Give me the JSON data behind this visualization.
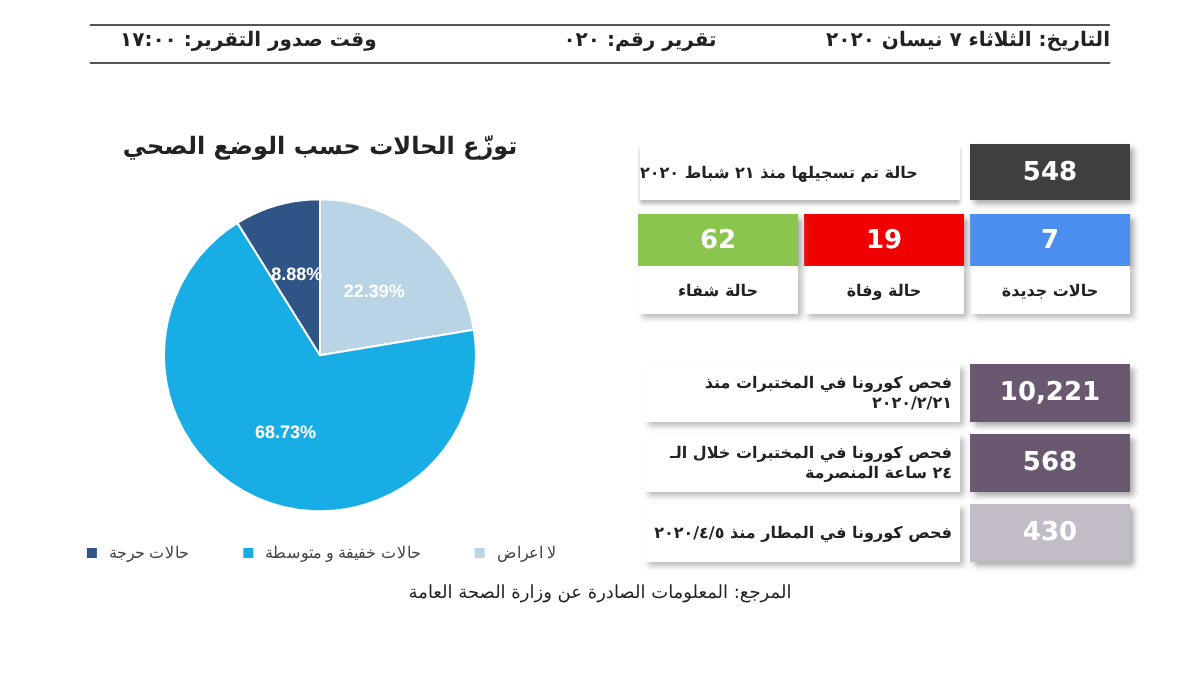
{
  "chart_data": [
    {
      "type": "pie",
      "title": "توزّع الحالات حسب الوضع الصحي",
      "categories": [
        "لا اعراض",
        "حالات خفيفة و متوسطة",
        "حالات حرجة"
      ],
      "values": [
        22.39,
        68.73,
        8.88
      ],
      "value_labels": [
        "22.39%",
        "68.73%",
        "8.88%"
      ],
      "colors": [
        "#b9d4e4",
        "#19ade5",
        "#2e5585"
      ],
      "legend": "bottom",
      "annotations": [
        "المرجع: المعلومات الصادرة عن وزارة الصحة العامة"
      ]
    },
    {
      "type": "other",
      "annotations": [
        "التاريخ: الثلاثاء ٧ نيسان ٢٠٢٠",
        "تقرير رقم: ٠٢٠",
        "وقت صدور التقرير: ١٧:٠٠",
        "548",
        "حالة تم تسجيلها منذ ٢١ شباط ٢٠٢٠",
        "7",
        "حالات جديدة",
        "19",
        "حالة وفاة",
        "62",
        "حالة شفاء",
        "10,221",
        "فحص كورونا في المختبرات منذ ٢٠٢٠/٢/٢١",
        "568",
        "فحص كورونا في المختبرات خلال الـ ٢٤ ساعة المنصرمة",
        "430",
        "فحص كورونا في المطار منذ ٢٠٢٠/٤/٥"
      ]
    }
  ]
}
